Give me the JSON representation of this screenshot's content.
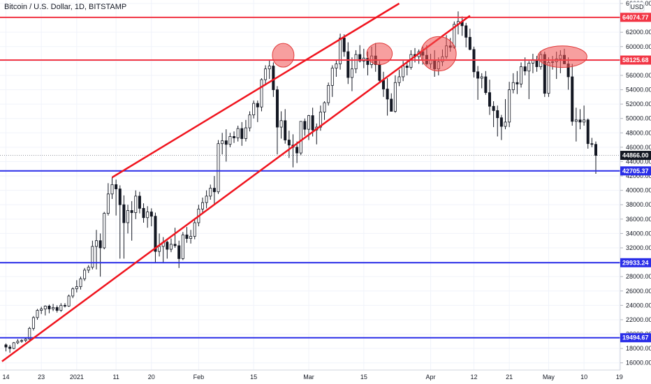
{
  "chart_data": {
    "type": "candlestick",
    "title": "Bitcoin / U.S. Dollar, 1D, BITSTAMP",
    "unit_label": "USD",
    "ylim": [
      15000,
      66000
    ],
    "y_ticks": [
      "16000.00",
      "18000.00",
      "20000.00",
      "22000.00",
      "24000.00",
      "26000.00",
      "28000.00",
      "30000.00",
      "32000.00",
      "34000.00",
      "36000.00",
      "38000.00",
      "40000.00",
      "42000.00",
      "44000.00",
      "46000.00",
      "48000.00",
      "50000.00",
      "52000.00",
      "54000.00",
      "56000.00",
      "58000.00",
      "60000.00",
      "62000.00",
      "64000.00",
      "66000.00"
    ],
    "x_ticks": [
      {
        "label": "14",
        "day": 0
      },
      {
        "label": "23",
        "day": 9
      },
      {
        "label": "2021",
        "day": 18
      },
      {
        "label": "11",
        "day": 28
      },
      {
        "label": "20",
        "day": 37
      },
      {
        "label": "Feb",
        "day": 49
      },
      {
        "label": "15",
        "day": 63
      },
      {
        "label": "Mar",
        "day": 77
      },
      {
        "label": "15",
        "day": 91
      },
      {
        "label": "Apr",
        "day": 108
      },
      {
        "label": "12",
        "day": 119
      },
      {
        "label": "21",
        "day": 128
      },
      {
        "label": "May",
        "day": 138
      },
      {
        "label": "10",
        "day": 147
      },
      {
        "label": "19",
        "day": 156
      }
    ],
    "horizontal_levels": [
      {
        "value": 64074.77,
        "label": "64074.77",
        "color": "#f23645"
      },
      {
        "value": 58125.68,
        "label": "58125.68",
        "color": "#f23645"
      },
      {
        "value": 42705.37,
        "label": "42705.37",
        "color": "#2a2ee8"
      },
      {
        "value": 29933.24,
        "label": "29933.24",
        "color": "#2a2ee8"
      },
      {
        "value": 19494.67,
        "label": "19494.67",
        "color": "#2a2ee8"
      }
    ],
    "current_price": {
      "value": 44866.0,
      "label": "44866.00"
    },
    "trendlines": [
      {
        "from": {
          "day": -1,
          "price": 16200
        },
        "to": {
          "day": 118,
          "price": 64300
        }
      },
      {
        "from": {
          "day": 27,
          "price": 41800
        },
        "to": {
          "day": 100,
          "price": 66000
        }
      }
    ],
    "highlight_circles": [
      {
        "day": 70.5,
        "price": 58800,
        "w_days": 5.5,
        "h_price": 3300
      },
      {
        "day": 95,
        "price": 59000,
        "w_days": 6.5,
        "h_price": 3000
      },
      {
        "day": 110,
        "price": 59000,
        "w_days": 9,
        "h_price": 4800
      },
      {
        "day": 141.5,
        "price": 58600,
        "w_days": 12.5,
        "h_price": 3000
      }
    ],
    "candles_start_day": 0,
    "candles": [
      {
        "o": 18500,
        "h": 18700,
        "l": 17600,
        "c": 18200
      },
      {
        "o": 18200,
        "h": 18500,
        "l": 17400,
        "c": 18000
      },
      {
        "o": 18000,
        "h": 18900,
        "l": 17900,
        "c": 18800
      },
      {
        "o": 18800,
        "h": 19300,
        "l": 18600,
        "c": 19000
      },
      {
        "o": 19000,
        "h": 19300,
        "l": 18800,
        "c": 19100
      },
      {
        "o": 19100,
        "h": 19400,
        "l": 18900,
        "c": 19300
      },
      {
        "o": 19300,
        "h": 21000,
        "l": 19200,
        "c": 20800
      },
      {
        "o": 20800,
        "h": 22500,
        "l": 20500,
        "c": 22300
      },
      {
        "o": 22300,
        "h": 23500,
        "l": 22000,
        "c": 23300
      },
      {
        "o": 23300,
        "h": 23800,
        "l": 22800,
        "c": 23500
      },
      {
        "o": 23500,
        "h": 24000,
        "l": 22600,
        "c": 23900
      },
      {
        "o": 23900,
        "h": 24100,
        "l": 22900,
        "c": 23500
      },
      {
        "o": 23500,
        "h": 24200,
        "l": 23200,
        "c": 23700
      },
      {
        "o": 23700,
        "h": 24000,
        "l": 23000,
        "c": 23300
      },
      {
        "o": 23300,
        "h": 24300,
        "l": 23100,
        "c": 24000
      },
      {
        "o": 24000,
        "h": 24300,
        "l": 23700,
        "c": 23900
      },
      {
        "o": 23900,
        "h": 25500,
        "l": 23800,
        "c": 25300
      },
      {
        "o": 25300,
        "h": 26500,
        "l": 25000,
        "c": 26300
      },
      {
        "o": 26300,
        "h": 27500,
        "l": 25800,
        "c": 26600
      },
      {
        "o": 26600,
        "h": 28000,
        "l": 26200,
        "c": 27700
      },
      {
        "o": 27700,
        "h": 29200,
        "l": 27400,
        "c": 28900
      },
      {
        "o": 28900,
        "h": 29600,
        "l": 28500,
        "c": 29300
      },
      {
        "o": 29300,
        "h": 33000,
        "l": 29000,
        "c": 32200
      },
      {
        "o": 32200,
        "h": 34500,
        "l": 29000,
        "c": 33000
      },
      {
        "o": 33000,
        "h": 34000,
        "l": 28000,
        "c": 32000
      },
      {
        "o": 32000,
        "h": 37000,
        "l": 31800,
        "c": 36800
      },
      {
        "o": 36800,
        "h": 41000,
        "l": 36500,
        "c": 39500
      },
      {
        "o": 39500,
        "h": 41800,
        "l": 38800,
        "c": 40800
      },
      {
        "o": 40800,
        "h": 41500,
        "l": 36500,
        "c": 40200
      },
      {
        "o": 40200,
        "h": 40700,
        "l": 30500,
        "c": 38000
      },
      {
        "o": 38000,
        "h": 39300,
        "l": 30500,
        "c": 35500
      },
      {
        "o": 35500,
        "h": 38000,
        "l": 34000,
        "c": 37200
      },
      {
        "o": 37200,
        "h": 38500,
        "l": 33000,
        "c": 36900
      },
      {
        "o": 36900,
        "h": 40000,
        "l": 36000,
        "c": 39200
      },
      {
        "o": 39200,
        "h": 39800,
        "l": 36800,
        "c": 37500
      },
      {
        "o": 37500,
        "h": 38200,
        "l": 35500,
        "c": 36200
      },
      {
        "o": 36200,
        "h": 37800,
        "l": 34800,
        "c": 37000
      },
      {
        "o": 37000,
        "h": 37500,
        "l": 35000,
        "c": 36400
      },
      {
        "o": 36400,
        "h": 36900,
        "l": 30000,
        "c": 31500
      },
      {
        "o": 31500,
        "h": 34000,
        "l": 30800,
        "c": 32200
      },
      {
        "o": 32200,
        "h": 33500,
        "l": 30000,
        "c": 32800
      },
      {
        "o": 32800,
        "h": 33000,
        "l": 30500,
        "c": 31800
      },
      {
        "o": 31800,
        "h": 33300,
        "l": 31400,
        "c": 32500
      },
      {
        "o": 32500,
        "h": 34800,
        "l": 32000,
        "c": 32300
      },
      {
        "o": 32300,
        "h": 33000,
        "l": 29200,
        "c": 30500
      },
      {
        "o": 30500,
        "h": 34200,
        "l": 30300,
        "c": 33800
      },
      {
        "o": 33800,
        "h": 34900,
        "l": 32700,
        "c": 33300
      },
      {
        "o": 33300,
        "h": 34500,
        "l": 32600,
        "c": 33600
      },
      {
        "o": 33600,
        "h": 36000,
        "l": 33200,
        "c": 35500
      },
      {
        "o": 35500,
        "h": 38000,
        "l": 35000,
        "c": 37400
      },
      {
        "o": 37400,
        "h": 39000,
        "l": 36800,
        "c": 38300
      },
      {
        "o": 38300,
        "h": 40000,
        "l": 37500,
        "c": 39200
      },
      {
        "o": 39200,
        "h": 40800,
        "l": 38700,
        "c": 40300
      },
      {
        "o": 40300,
        "h": 42000,
        "l": 38000,
        "c": 39800
      },
      {
        "o": 39800,
        "h": 47000,
        "l": 39500,
        "c": 46500
      },
      {
        "o": 46500,
        "h": 48000,
        "l": 45000,
        "c": 46900
      },
      {
        "o": 46900,
        "h": 48500,
        "l": 44000,
        "c": 46400
      },
      {
        "o": 46400,
        "h": 48000,
        "l": 46000,
        "c": 47500
      },
      {
        "o": 47500,
        "h": 48200,
        "l": 46600,
        "c": 47300
      },
      {
        "o": 47300,
        "h": 49000,
        "l": 46800,
        "c": 48600
      },
      {
        "o": 48600,
        "h": 49500,
        "l": 46200,
        "c": 47200
      },
      {
        "o": 47200,
        "h": 49800,
        "l": 46800,
        "c": 48700
      },
      {
        "o": 48700,
        "h": 51000,
        "l": 48200,
        "c": 50500
      },
      {
        "o": 50500,
        "h": 52500,
        "l": 50000,
        "c": 52100
      },
      {
        "o": 52100,
        "h": 52500,
        "l": 49500,
        "c": 51600
      },
      {
        "o": 51600,
        "h": 55600,
        "l": 51000,
        "c": 55400
      },
      {
        "o": 55400,
        "h": 57400,
        "l": 54800,
        "c": 56900
      },
      {
        "o": 56900,
        "h": 58200,
        "l": 55500,
        "c": 57300
      },
      {
        "o": 57300,
        "h": 57800,
        "l": 53000,
        "c": 54000
      },
      {
        "o": 54000,
        "h": 54500,
        "l": 45000,
        "c": 48800
      },
      {
        "o": 48800,
        "h": 51000,
        "l": 47200,
        "c": 49700
      },
      {
        "o": 49700,
        "h": 51300,
        "l": 46500,
        "c": 47000
      },
      {
        "o": 47000,
        "h": 48300,
        "l": 44500,
        "c": 46300
      },
      {
        "o": 46300,
        "h": 47800,
        "l": 43200,
        "c": 46000
      },
      {
        "o": 46000,
        "h": 46800,
        "l": 43800,
        "c": 45200
      },
      {
        "o": 45200,
        "h": 49600,
        "l": 44900,
        "c": 49600
      },
      {
        "o": 49600,
        "h": 50000,
        "l": 47600,
        "c": 48500
      },
      {
        "o": 48500,
        "h": 50500,
        "l": 47000,
        "c": 50400
      },
      {
        "o": 50400,
        "h": 51500,
        "l": 47500,
        "c": 48400
      },
      {
        "o": 48400,
        "h": 49300,
        "l": 46400,
        "c": 48800
      },
      {
        "o": 48800,
        "h": 51800,
        "l": 48300,
        "c": 50900
      },
      {
        "o": 50900,
        "h": 52400,
        "l": 49800,
        "c": 52200
      },
      {
        "o": 52200,
        "h": 55000,
        "l": 51800,
        "c": 54600
      },
      {
        "o": 54600,
        "h": 57400,
        "l": 53000,
        "c": 57000
      },
      {
        "o": 57000,
        "h": 58100,
        "l": 55800,
        "c": 57600
      },
      {
        "o": 57600,
        "h": 61800,
        "l": 56800,
        "c": 61200
      },
      {
        "o": 61200,
        "h": 61700,
        "l": 58600,
        "c": 59300
      },
      {
        "o": 59300,
        "h": 60600,
        "l": 54800,
        "c": 55700
      },
      {
        "o": 55700,
        "h": 58500,
        "l": 53800,
        "c": 56900
      },
      {
        "o": 56900,
        "h": 59500,
        "l": 56300,
        "c": 58900
      },
      {
        "o": 58900,
        "h": 60200,
        "l": 57800,
        "c": 58000
      },
      {
        "o": 58000,
        "h": 59700,
        "l": 57000,
        "c": 58400
      },
      {
        "o": 58400,
        "h": 59300,
        "l": 56000,
        "c": 57500
      },
      {
        "o": 57500,
        "h": 60000,
        "l": 57000,
        "c": 58700
      },
      {
        "o": 58700,
        "h": 60500,
        "l": 56500,
        "c": 57500
      },
      {
        "o": 57500,
        "h": 58000,
        "l": 55000,
        "c": 55300
      },
      {
        "o": 55300,
        "h": 56500,
        "l": 53000,
        "c": 54100
      },
      {
        "o": 54100,
        "h": 55600,
        "l": 50400,
        "c": 52700
      },
      {
        "o": 52700,
        "h": 53500,
        "l": 51000,
        "c": 51000
      },
      {
        "o": 51000,
        "h": 56000,
        "l": 50800,
        "c": 55000
      },
      {
        "o": 55000,
        "h": 56800,
        "l": 54500,
        "c": 55800
      },
      {
        "o": 55800,
        "h": 58000,
        "l": 55200,
        "c": 57300
      },
      {
        "o": 57300,
        "h": 58000,
        "l": 56000,
        "c": 57100
      },
      {
        "o": 57100,
        "h": 59500,
        "l": 56800,
        "c": 58900
      },
      {
        "o": 58900,
        "h": 59800,
        "l": 57800,
        "c": 58600
      },
      {
        "o": 58600,
        "h": 59600,
        "l": 57600,
        "c": 59300
      },
      {
        "o": 59300,
        "h": 60000,
        "l": 57500,
        "c": 58800
      },
      {
        "o": 58800,
        "h": 60200,
        "l": 57400,
        "c": 57600
      },
      {
        "o": 57600,
        "h": 59000,
        "l": 57000,
        "c": 58100
      },
      {
        "o": 58100,
        "h": 59500,
        "l": 55800,
        "c": 56900
      },
      {
        "o": 56900,
        "h": 58500,
        "l": 56000,
        "c": 57900
      },
      {
        "o": 57900,
        "h": 59600,
        "l": 57300,
        "c": 58600
      },
      {
        "o": 58600,
        "h": 61600,
        "l": 58300,
        "c": 60100
      },
      {
        "o": 60100,
        "h": 61200,
        "l": 59300,
        "c": 59900
      },
      {
        "o": 59900,
        "h": 63500,
        "l": 59700,
        "c": 63100
      },
      {
        "o": 63100,
        "h": 64900,
        "l": 61700,
        "c": 63500
      },
      {
        "o": 63500,
        "h": 64200,
        "l": 61500,
        "c": 62900
      },
      {
        "o": 62900,
        "h": 63300,
        "l": 59900,
        "c": 61300
      },
      {
        "o": 61300,
        "h": 62500,
        "l": 59500,
        "c": 59600
      },
      {
        "o": 59600,
        "h": 60000,
        "l": 55700,
        "c": 56500
      },
      {
        "o": 56500,
        "h": 57300,
        "l": 52600,
        "c": 55600
      },
      {
        "o": 55600,
        "h": 56300,
        "l": 54200,
        "c": 55800
      },
      {
        "o": 55800,
        "h": 56600,
        "l": 53300,
        "c": 53600
      },
      {
        "o": 53600,
        "h": 55400,
        "l": 50500,
        "c": 51700
      },
      {
        "o": 51700,
        "h": 52400,
        "l": 48800,
        "c": 51100
      },
      {
        "o": 51100,
        "h": 51800,
        "l": 47500,
        "c": 50100
      },
      {
        "o": 50100,
        "h": 50500,
        "l": 47000,
        "c": 48900
      },
      {
        "o": 48900,
        "h": 52700,
        "l": 48500,
        "c": 49500
      },
      {
        "o": 49500,
        "h": 55100,
        "l": 48800,
        "c": 54000
      },
      {
        "o": 54000,
        "h": 56300,
        "l": 53500,
        "c": 55000
      },
      {
        "o": 55000,
        "h": 56600,
        "l": 53400,
        "c": 54800
      },
      {
        "o": 54800,
        "h": 57800,
        "l": 54300,
        "c": 57200
      },
      {
        "o": 57200,
        "h": 58500,
        "l": 56000,
        "c": 56600
      },
      {
        "o": 56600,
        "h": 58000,
        "l": 52700,
        "c": 57700
      },
      {
        "o": 57700,
        "h": 59000,
        "l": 56300,
        "c": 58200
      },
      {
        "o": 58200,
        "h": 58700,
        "l": 56500,
        "c": 57200
      },
      {
        "o": 57200,
        "h": 59400,
        "l": 56800,
        "c": 58900
      },
      {
        "o": 58900,
        "h": 59300,
        "l": 53000,
        "c": 53500
      },
      {
        "o": 53500,
        "h": 58500,
        "l": 53000,
        "c": 57800
      },
      {
        "o": 57800,
        "h": 58700,
        "l": 56800,
        "c": 57900
      },
      {
        "o": 57900,
        "h": 59300,
        "l": 55500,
        "c": 58300
      },
      {
        "o": 58300,
        "h": 59500,
        "l": 56300,
        "c": 58800
      },
      {
        "o": 58800,
        "h": 59700,
        "l": 57600,
        "c": 57600
      },
      {
        "o": 57600,
        "h": 58500,
        "l": 54000,
        "c": 55800
      },
      {
        "o": 55800,
        "h": 57600,
        "l": 49000,
        "c": 49600
      },
      {
        "o": 49600,
        "h": 51500,
        "l": 46800,
        "c": 49800
      },
      {
        "o": 49800,
        "h": 51300,
        "l": 48500,
        "c": 49500
      },
      {
        "o": 49500,
        "h": 51800,
        "l": 49000,
        "c": 49800
      },
      {
        "o": 49800,
        "h": 50000,
        "l": 45800,
        "c": 46500
      },
      {
        "o": 46500,
        "h": 47300,
        "l": 46000,
        "c": 46400
      },
      {
        "o": 46400,
        "h": 46800,
        "l": 42300,
        "c": 44866
      }
    ]
  }
}
